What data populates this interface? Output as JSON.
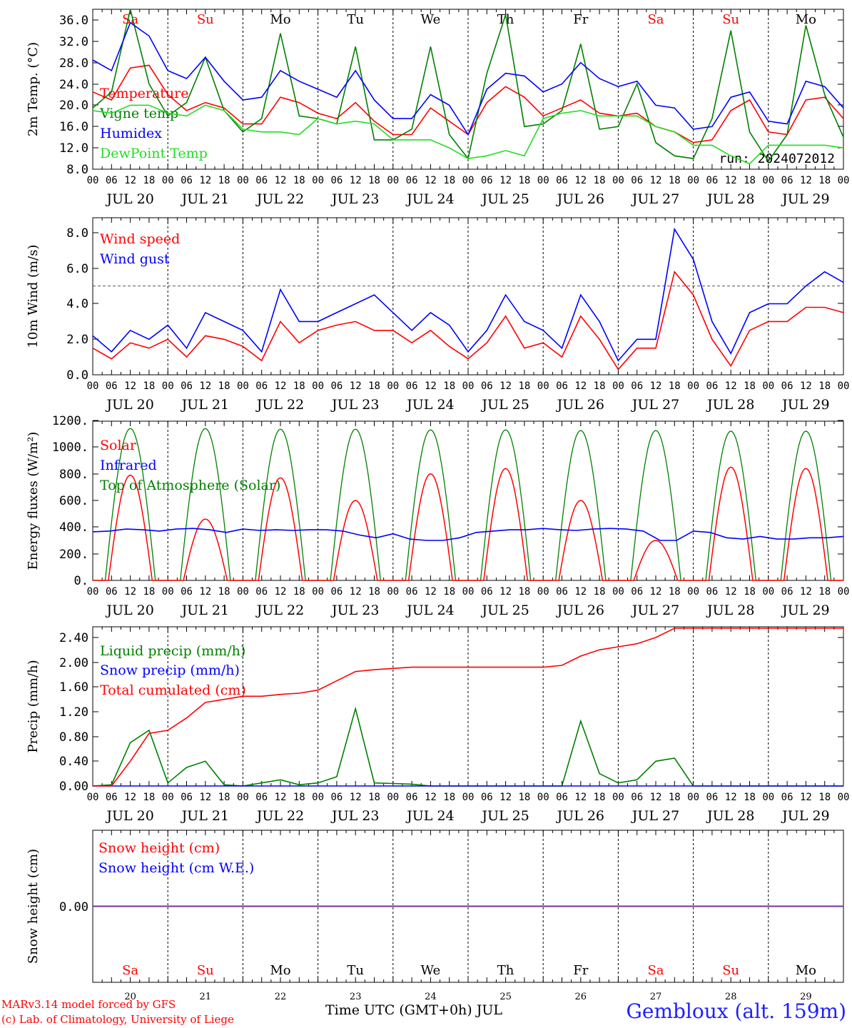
{
  "footer": {
    "credit_line1": "MARv3.14 model forced by GFS",
    "credit_line2": "(c) Lab. of Climatology, University of Liege",
    "station": "Gembloux (alt. 159m)",
    "xaxis_title": "Time UTC (GMT+0h) JUL"
  },
  "colors": {
    "red": "#ff0000",
    "green": "#008000",
    "blue": "#0000ff",
    "lightgreen": "#22dd22",
    "purple": "#7030a0"
  },
  "days": {
    "labels": [
      "JUL 20",
      "JUL 21",
      "JUL 22",
      "JUL 23",
      "JUL 24",
      "JUL 25",
      "JUL 26",
      "JUL 27",
      "JUL 28",
      "JUL 29"
    ],
    "weekdays": [
      "Sa",
      "Su",
      "Mo",
      "Tu",
      "We",
      "Th",
      "Fr",
      "Sa",
      "Su",
      "Mo"
    ],
    "weekday_colors": [
      "#ff0000",
      "#ff0000",
      "#000000",
      "#000000",
      "#000000",
      "#000000",
      "#000000",
      "#ff0000",
      "#ff0000",
      "#000000"
    ],
    "numbers": [
      "20",
      "21",
      "22",
      "23",
      "24",
      "25",
      "26",
      "27",
      "28",
      "29"
    ],
    "hour_ticks": [
      "00",
      "06",
      "12",
      "18"
    ],
    "end_tick": "00"
  },
  "chart_data": [
    {
      "type": "line",
      "ylabel": "2m Temp. (°C)",
      "ylim": [
        8,
        38
      ],
      "yticks": [
        "8.0",
        "12.0",
        "16.0",
        "20.0",
        "24.0",
        "28.0",
        "32.0",
        "36.0"
      ],
      "ytick_values": [
        8,
        12,
        16,
        20,
        24,
        28,
        32,
        36
      ],
      "annotation": "run: 2024072012",
      "x_hours": [
        0,
        6,
        12,
        18,
        24,
        30,
        36,
        42,
        48,
        54,
        60,
        66,
        72,
        78,
        84,
        90,
        96,
        102,
        108,
        114,
        120,
        126,
        132,
        138,
        144,
        150,
        156,
        162,
        168,
        174,
        180,
        186,
        192,
        198,
        204,
        210,
        216,
        222,
        228,
        234,
        240
      ],
      "series": [
        {
          "name": "Temperature",
          "color": "#ff0000",
          "values": [
            22.5,
            21.0,
            27.0,
            27.5,
            22.0,
            19.0,
            20.5,
            19.5,
            16.5,
            16.5,
            21.5,
            20.5,
            18.5,
            17.5,
            20.5,
            17.0,
            14.5,
            14.5,
            19.5,
            17.0,
            14.5,
            20.5,
            23.5,
            21.5,
            18.0,
            19.5,
            21.0,
            18.5,
            18.0,
            18.5,
            16.0,
            15.0,
            13.0,
            13.5,
            19.0,
            21.0,
            15.0,
            14.5,
            21.0,
            21.5,
            17.5
          ]
        },
        {
          "name": "Vigne temp",
          "color": "#008000",
          "values": [
            19.5,
            22.5,
            38.0,
            24.0,
            18.0,
            20.5,
            29.0,
            19.0,
            15.0,
            17.5,
            33.5,
            18.0,
            17.5,
            16.5,
            31.0,
            13.5,
            13.5,
            15.5,
            31.0,
            14.5,
            10.0,
            26.0,
            37.0,
            16.0,
            16.5,
            19.0,
            31.5,
            15.5,
            16.0,
            24.0,
            13.0,
            10.5,
            10.0,
            17.5,
            34.0,
            15.0,
            9.5,
            14.5,
            35.0,
            22.0,
            14.0
          ]
        },
        {
          "name": "Humidex",
          "color": "#0000ff",
          "values": [
            28.5,
            26.5,
            35.5,
            33.0,
            26.5,
            25.0,
            29.0,
            24.5,
            21.0,
            21.5,
            26.5,
            24.5,
            23.0,
            21.5,
            26.5,
            21.0,
            17.5,
            17.5,
            22.0,
            20.0,
            14.5,
            23.0,
            26.0,
            25.5,
            22.5,
            24.0,
            28.0,
            25.0,
            23.5,
            24.5,
            20.0,
            19.5,
            15.5,
            16.0,
            21.5,
            22.5,
            17.0,
            16.5,
            24.5,
            23.5,
            19.5
          ]
        },
        {
          "name": "DewPoint Temp",
          "color": "#22dd22",
          "values": [
            19.0,
            18.5,
            20.0,
            20.0,
            18.5,
            18.0,
            20.0,
            19.0,
            15.5,
            15.0,
            15.0,
            14.5,
            17.5,
            16.5,
            17.0,
            16.5,
            13.5,
            13.5,
            13.5,
            12.0,
            10.0,
            10.5,
            11.5,
            10.5,
            17.5,
            18.5,
            19.0,
            18.0,
            18.0,
            18.0,
            16.0,
            15.0,
            12.5,
            12.5,
            10.5,
            9.0,
            12.5,
            12.5,
            12.5,
            12.5,
            12.0
          ]
        }
      ]
    },
    {
      "type": "line",
      "ylabel": "10m Wind (m/s)",
      "ylim": [
        0,
        8.8
      ],
      "yticks": [
        "0.0",
        "2.0",
        "4.0",
        "6.0",
        "8.0"
      ],
      "ytick_values": [
        0,
        2,
        4,
        6,
        8
      ],
      "reference_line": 5.0,
      "x_hours": [
        0,
        6,
        12,
        18,
        24,
        30,
        36,
        42,
        48,
        54,
        60,
        66,
        72,
        78,
        84,
        90,
        96,
        102,
        108,
        114,
        120,
        126,
        132,
        138,
        144,
        150,
        156,
        162,
        168,
        174,
        180,
        186,
        192,
        198,
        204,
        210,
        216,
        222,
        228,
        234,
        240
      ],
      "series": [
        {
          "name": "Wind speed",
          "color": "#ff0000",
          "values": [
            1.5,
            0.9,
            1.8,
            1.5,
            2.0,
            1.0,
            2.2,
            2.0,
            1.6,
            0.8,
            3.0,
            1.8,
            2.5,
            2.8,
            3.0,
            2.5,
            2.5,
            1.8,
            2.5,
            1.6,
            0.9,
            1.8,
            3.3,
            1.5,
            1.8,
            1.0,
            3.3,
            2.0,
            0.3,
            1.5,
            1.5,
            5.8,
            4.5,
            2.0,
            0.5,
            2.5,
            3.0,
            3.0,
            3.8,
            3.8,
            3.5
          ]
        },
        {
          "name": "Wind gust",
          "color": "#0000ff",
          "values": [
            2.2,
            1.3,
            2.5,
            2.0,
            2.8,
            1.5,
            3.5,
            3.0,
            2.5,
            1.3,
            4.8,
            3.0,
            3.0,
            3.5,
            4.0,
            4.5,
            3.5,
            2.5,
            3.5,
            2.8,
            1.3,
            2.5,
            4.5,
            3.0,
            2.5,
            1.5,
            4.5,
            3.0,
            0.8,
            2.0,
            2.0,
            8.2,
            6.5,
            3.0,
            1.2,
            3.5,
            4.0,
            4.0,
            5.0,
            5.8,
            5.2
          ]
        }
      ]
    },
    {
      "type": "line",
      "ylabel": "Energy fluxes (W/m²)",
      "ylim": [
        0,
        1200
      ],
      "yticks": [
        "0.",
        "200.",
        "400.",
        "600.",
        "800.",
        "1000.",
        "1200."
      ],
      "ytick_values": [
        0,
        200,
        400,
        600,
        800,
        1000,
        1200
      ],
      "series": [
        {
          "name": "Solar",
          "color": "#ff0000",
          "daily_peak": [
            790,
            460,
            770,
            600,
            800,
            840,
            600,
            300,
            850,
            840
          ]
        },
        {
          "name": "Infrared",
          "color": "#0000ff",
          "values": [
            365,
            370,
            385,
            380,
            370,
            385,
            390,
            380,
            360,
            385,
            375,
            380,
            375,
            380,
            380,
            370,
            340,
            320,
            350,
            310,
            300,
            300,
            320,
            360,
            370,
            380,
            380,
            390,
            380,
            375,
            385,
            390,
            385,
            370,
            300,
            300,
            370,
            360,
            320,
            310,
            330,
            310,
            310,
            320,
            320,
            330
          ]
        },
        {
          "name": "Top of Atmosphere (Solar)",
          "color": "#008000",
          "daily_peak": [
            1140,
            1140,
            1135,
            1135,
            1130,
            1130,
            1125,
            1125,
            1120,
            1120
          ]
        }
      ]
    },
    {
      "type": "line",
      "ylabel": "Precip (mm/h)",
      "ylim": [
        0,
        2.6
      ],
      "yticks": [
        "0.00",
        "0.40",
        "0.80",
        "1.20",
        "1.60",
        "2.00",
        "2.40"
      ],
      "ytick_values": [
        0,
        0.4,
        0.8,
        1.2,
        1.6,
        2.0,
        2.4
      ],
      "x_hours": [
        0,
        6,
        12,
        18,
        24,
        30,
        36,
        42,
        48,
        54,
        60,
        66,
        72,
        78,
        84,
        90,
        96,
        102,
        108,
        114,
        120,
        126,
        132,
        138,
        144,
        150,
        156,
        162,
        168,
        174,
        180,
        186,
        192,
        198,
        204,
        210,
        216,
        222,
        228,
        234,
        240
      ],
      "series": [
        {
          "name": "Liquid precip (mm/h)",
          "color": "#008000",
          "values": [
            0,
            0.02,
            0.7,
            0.9,
            0.05,
            0.3,
            0.4,
            0.02,
            0,
            0.05,
            0.1,
            0.02,
            0.05,
            0.15,
            1.25,
            0.05,
            0.04,
            0.03,
            0,
            0,
            0,
            0,
            0,
            0,
            0,
            0,
            1.05,
            0.2,
            0.05,
            0.1,
            0.4,
            0.45,
            0,
            0,
            0,
            0,
            0,
            0,
            0,
            0,
            0
          ]
        },
        {
          "name": "Snow precip (mm/h)",
          "color": "#0000ff",
          "values": [
            0,
            0,
            0,
            0,
            0,
            0,
            0,
            0,
            0,
            0,
            0,
            0,
            0,
            0,
            0,
            0,
            0,
            0,
            0,
            0,
            0,
            0,
            0,
            0,
            0,
            0,
            0,
            0,
            0,
            0,
            0,
            0,
            0,
            0,
            0,
            0,
            0,
            0,
            0,
            0,
            0
          ]
        },
        {
          "name": "Total cumulated (cm)",
          "color": "#ff0000",
          "values": [
            0,
            0,
            0.4,
            0.85,
            0.9,
            1.1,
            1.35,
            1.4,
            1.45,
            1.45,
            1.48,
            1.5,
            1.55,
            1.7,
            1.85,
            1.88,
            1.9,
            1.92,
            1.92,
            1.92,
            1.92,
            1.92,
            1.92,
            1.92,
            1.92,
            1.95,
            2.1,
            2.2,
            2.25,
            2.3,
            2.4,
            2.55,
            2.55,
            2.55,
            2.55,
            2.55,
            2.55,
            2.55,
            2.55,
            2.55,
            2.55
          ]
        }
      ]
    },
    {
      "type": "line",
      "ylabel": "Snow height (cm)",
      "ylim": [
        -1,
        1
      ],
      "yticks": [
        "0.00"
      ],
      "ytick_values": [
        0
      ],
      "series": [
        {
          "name": "Snow height (cm)",
          "color": "#ff0000",
          "values": [
            0,
            0
          ]
        },
        {
          "name": "Snow height (cm W.E.)",
          "color": "#0000ff",
          "values": [
            0,
            0
          ]
        }
      ]
    }
  ]
}
